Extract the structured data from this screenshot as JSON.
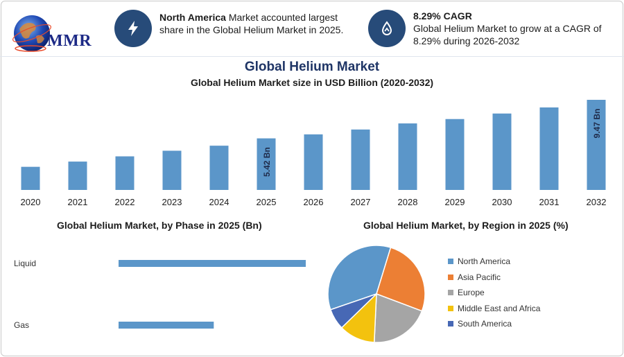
{
  "brand": {
    "logo_text": "MMR"
  },
  "header": {
    "card1": {
      "icon": "lightning-icon",
      "bold": "North America",
      "text": " Market accounted largest share in the Global Helium Market in 2025."
    },
    "card2": {
      "icon": "growth-drop-icon",
      "bold": "8.29% CAGR",
      "text": "Global Helium Market to grow at a CAGR of 8.29% during 2026-2032"
    }
  },
  "titles": {
    "main": "Global Helium Market",
    "sub": "Global Helium Market size in USD Billion (2020-2032)",
    "phase": "Global Helium Market, by Phase in 2025 (Bn)",
    "region": "Global Helium Market, by Region in 2025 (%)"
  },
  "colors": {
    "bar": "#5b96c9",
    "title": "#1f3566",
    "icon_bg": "#274b79"
  },
  "chart_data": [
    {
      "type": "bar",
      "title": "Global Helium Market size in USD Billion (2020-2032)",
      "categories": [
        "2020",
        "2021",
        "2022",
        "2023",
        "2024",
        "2025",
        "2026",
        "2027",
        "2028",
        "2029",
        "2030",
        "2031",
        "2032"
      ],
      "values": [
        2.43,
        2.98,
        3.53,
        4.12,
        4.65,
        5.42,
        5.84,
        6.35,
        6.99,
        7.45,
        8.03,
        8.67,
        9.47
      ],
      "data_labels": [
        {
          "category": "2025",
          "text": "5.42 Bn"
        },
        {
          "category": "2032",
          "text": "9.47 Bn"
        }
      ],
      "ylim": [
        0,
        9.47
      ],
      "grid": false
    },
    {
      "type": "bar",
      "orientation": "horizontal",
      "title": "Global Helium Market, by Phase in 2025 (Bn)",
      "categories": [
        "Liquid",
        "Gas"
      ],
      "values": [
        3.5,
        1.78
      ],
      "xlim": [
        0,
        3.5
      ],
      "grid": false
    },
    {
      "type": "pie",
      "title": "Global Helium Market, by Region in 2025 (%)",
      "categories": [
        "North America",
        "Asia Pacific",
        "Europe",
        "Middle East and Africa",
        "South America"
      ],
      "values": [
        35,
        26,
        20,
        12,
        7
      ],
      "colors": [
        "#5b96c9",
        "#ec7f34",
        "#a5a5a5",
        "#f3c20e",
        "#4768b5"
      ],
      "legend": "right"
    }
  ]
}
